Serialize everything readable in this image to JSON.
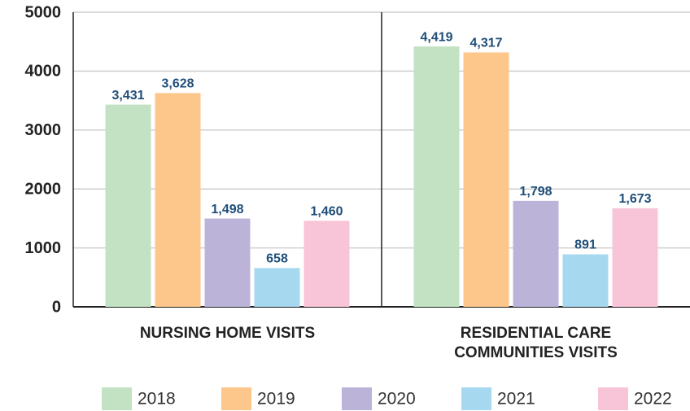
{
  "chart_data": {
    "type": "bar",
    "categories": [
      "NURSING HOME VISITS",
      "RESIDENTIAL CARE COMMUNITIES VISITS"
    ],
    "series": [
      {
        "name": "2018",
        "color": "#c3e2c4",
        "values": [
          3431,
          4419
        ],
        "value_labels": [
          "3,431",
          "4,419"
        ]
      },
      {
        "name": "2019",
        "color": "#fdc68b",
        "values": [
          3628,
          4317
        ],
        "value_labels": [
          "3,628",
          "4,317"
        ]
      },
      {
        "name": "2020",
        "color": "#bcb4d8",
        "values": [
          1498,
          1798
        ],
        "value_labels": [
          "1,498",
          "1,798"
        ]
      },
      {
        "name": "2021",
        "color": "#a6d8ef",
        "values": [
          658,
          891
        ],
        "value_labels": [
          "658",
          "891"
        ]
      },
      {
        "name": "2022",
        "color": "#f7c4d8",
        "values": [
          1460,
          1673
        ],
        "value_labels": [
          "1,460",
          "1,673"
        ]
      }
    ],
    "ylim": [
      0,
      5000
    ],
    "yticks": [
      0,
      1000,
      2000,
      3000,
      4000,
      5000
    ],
    "grid": true
  }
}
